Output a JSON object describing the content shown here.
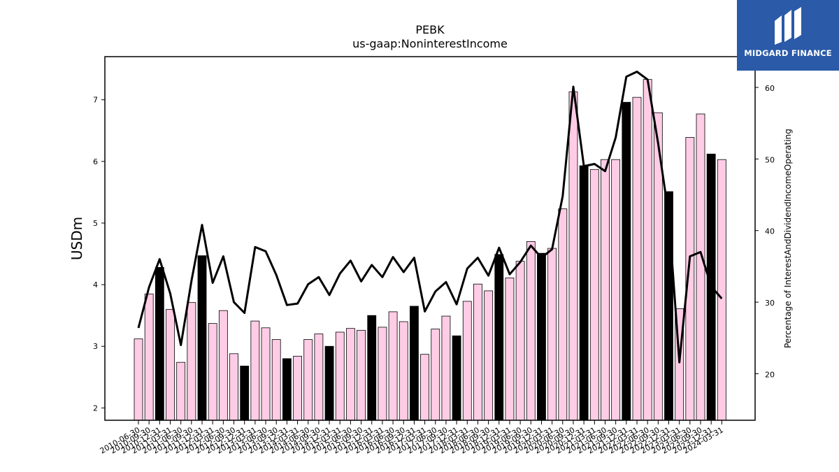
{
  "logo": {
    "text": "MIDGARD FINANCE",
    "icon": "midgard-mark-icon",
    "bg_color": "#2a5aa8"
  },
  "colors": {
    "bar_pink": "#ffcce6",
    "bar_black": "#000000",
    "line": "#000000"
  },
  "chart_data": {
    "type": "bar",
    "title": "PEBK",
    "subtitle": "us-gaap:NoninterestIncome",
    "ylabel": "USDm",
    "ylabel_right": "Percentage of InterestAndDividendIncomeOperating",
    "ylim": [
      1.8,
      7.7
    ],
    "ylim_right": [
      13.5,
      64.3
    ],
    "yticks": [
      2,
      3,
      4,
      5,
      6,
      7
    ],
    "yticks_right": [
      20,
      30,
      40,
      50,
      60
    ],
    "grid": false,
    "legend": "none",
    "categories": [
      "2010-06-30",
      "2010-09-30",
      "2010-12-31",
      "2011-03-31",
      "2011-06-30",
      "2011-09-30",
      "2011-12-31",
      "2012-03-31",
      "2012-06-30",
      "2012-09-30",
      "2012-12-31",
      "2013-03-31",
      "2013-06-30",
      "2013-09-30",
      "2013-12-31",
      "2014-03-31",
      "2014-06-30",
      "2014-09-30",
      "2014-12-31",
      "2015-03-31",
      "2015-06-30",
      "2015-09-30",
      "2015-12-31",
      "2016-03-31",
      "2016-06-30",
      "2016-09-30",
      "2016-12-31",
      "2017-03-31",
      "2017-06-30",
      "2017-09-30",
      "2017-12-31",
      "2018-03-31",
      "2018-06-30",
      "2018-09-30",
      "2018-12-31",
      "2019-03-31",
      "2019-06-30",
      "2019-09-30",
      "2019-12-31",
      "2020-03-31",
      "2020-06-30",
      "2020-09-30",
      "2020-12-31",
      "2021-03-31",
      "2021-06-30",
      "2021-09-30",
      "2021-12-31",
      "2022-03-31",
      "2022-06-30",
      "2022-09-30",
      "2022-12-31",
      "2023-03-31",
      "2023-06-30",
      "2023-09-30",
      "2023-12-31",
      "2024-03-31"
    ],
    "series": [
      {
        "kind": "bar",
        "axis": "left",
        "values": [
          3.12,
          3.85,
          4.28,
          3.6,
          2.74,
          3.71,
          4.47,
          3.37,
          3.58,
          2.88,
          2.68,
          3.41,
          3.3,
          3.11,
          2.8,
          2.84,
          3.11,
          3.2,
          3.0,
          3.23,
          3.29,
          3.26,
          3.5,
          3.31,
          3.56,
          3.4,
          3.65,
          2.87,
          3.28,
          3.49,
          3.17,
          3.73,
          4.01,
          3.9,
          4.49,
          4.11,
          4.38,
          4.7,
          4.51,
          4.59,
          5.23,
          7.13,
          5.93,
          5.87,
          6.03,
          6.03,
          6.96,
          7.04,
          7.33,
          6.79,
          5.51,
          3.61,
          6.39,
          6.77,
          6.12,
          6.03
        ],
        "highlight": [
          false,
          false,
          true,
          false,
          false,
          false,
          true,
          false,
          false,
          false,
          true,
          false,
          false,
          false,
          true,
          false,
          false,
          false,
          true,
          false,
          false,
          false,
          true,
          false,
          false,
          false,
          true,
          false,
          false,
          false,
          true,
          false,
          false,
          false,
          true,
          false,
          false,
          false,
          true,
          false,
          false,
          false,
          true,
          false,
          false,
          false,
          true,
          false,
          false,
          false,
          true,
          false,
          false,
          false,
          true,
          false
        ]
      },
      {
        "kind": "line",
        "axis": "right",
        "values": [
          26.4,
          32.1,
          36.0,
          31.2,
          24.0,
          33.0,
          40.8,
          32.7,
          36.4,
          30.0,
          28.5,
          37.7,
          37.1,
          33.8,
          29.6,
          29.8,
          32.5,
          33.5,
          31.0,
          34.0,
          35.8,
          32.9,
          35.2,
          33.5,
          36.3,
          34.2,
          36.2,
          28.7,
          31.5,
          32.8,
          29.7,
          34.7,
          36.2,
          33.7,
          37.6,
          33.9,
          35.6,
          37.9,
          36.2,
          37.4,
          44.8,
          60.1,
          49.0,
          49.3,
          48.3,
          53.0,
          61.5,
          62.2,
          61.1,
          52.2,
          42.1,
          21.6,
          36.4,
          37.0,
          32.2,
          30.5
        ]
      }
    ]
  }
}
